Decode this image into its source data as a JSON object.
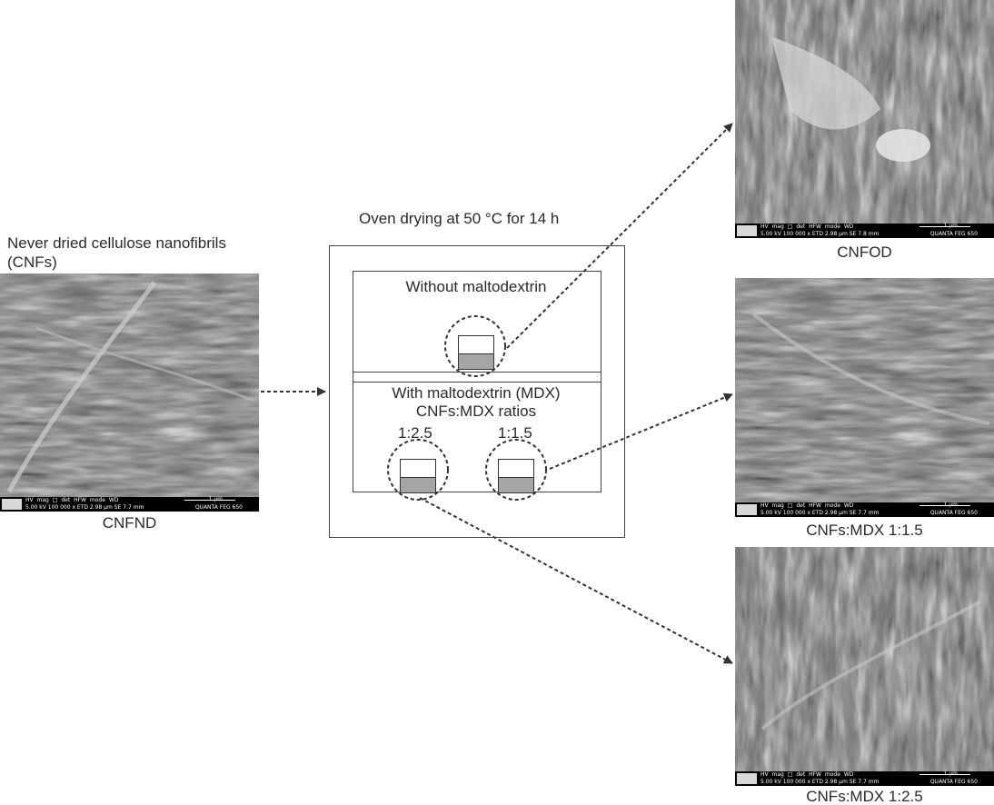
{
  "source": {
    "title_line1": "Never dried cellulose nanofibrils",
    "title_line2": "(CNFs)",
    "caption": "CNFND"
  },
  "process": {
    "title": "Oven drying at 50 °C for 14 h",
    "without_label": "Without maltodextrin",
    "with_label": "With maltodextrin (MDX)",
    "ratios_label": "CNFs:MDX ratios",
    "ratio_left": "1:2.5",
    "ratio_right": "1:1.5"
  },
  "results": [
    {
      "caption": "CNFOD"
    },
    {
      "caption": "CNFs:MDX 1:1.5"
    },
    {
      "caption": "CNFs:MDX 1:2.5"
    }
  ],
  "sem_databar": {
    "row1": "HV   mag □   det   HFW   mode   WD",
    "scale": "1 μm",
    "row2_a": "5.00 kV 100 000 x ETD 2.98 μm  SE  7.7 mm",
    "row2_b": "5.00 kV 100 000 x ETD 2.98 μm  SE  7.8 mm",
    "instrument": "QUANTA FEG 650"
  },
  "colors": {
    "line": "#333333",
    "fill": "#a5a5a5",
    "sem_bg": "#6d6d6d"
  }
}
